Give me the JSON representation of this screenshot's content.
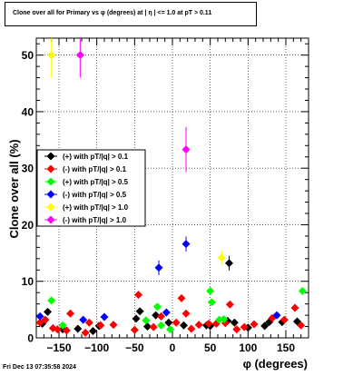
{
  "timestamp": "Fri Dec 13 07:35:58 2024",
  "chart_data": {
    "type": "scatter",
    "title": "Clone  over all for Primary vs φ (degrees) at | η | <= 1.0 at pT > 0.11",
    "xlabel": "φ (degrees)",
    "ylabel": "Clone  over all (%)",
    "xlim": [
      -180,
      180
    ],
    "ylim": [
      0,
      53
    ],
    "xticks": [
      -150,
      -100,
      -50,
      0,
      50,
      100,
      150
    ],
    "yticks": [
      0,
      10,
      20,
      30,
      40,
      50
    ],
    "grid": true,
    "legend_position": "middle-left",
    "series": [
      {
        "name": "(+) with pT/|q| > 0.1",
        "color": "#000000",
        "points": [
          [
            -172,
            2.5
          ],
          [
            -165,
            4.6
          ],
          [
            -145,
            1.5
          ],
          [
            -125,
            1.6
          ],
          [
            -105,
            1.2
          ],
          [
            -97,
            2.1
          ],
          [
            -48,
            3.4
          ],
          [
            -43,
            4.7
          ],
          [
            -33,
            2.0
          ],
          [
            -22,
            4.0
          ],
          [
            -5,
            2.7
          ],
          [
            15,
            2.2
          ],
          [
            45,
            2.2
          ],
          [
            50,
            2.1
          ],
          [
            73,
            3.0
          ],
          [
            75,
            13.2
          ],
          [
            82,
            2.7
          ],
          [
            100,
            1.8
          ],
          [
            122,
            2.1
          ],
          [
            128,
            2.8
          ],
          [
            145,
            2.8
          ],
          [
            165,
            2.9
          ]
        ]
      },
      {
        "name": "(-) with pT/|q| > 0.1",
        "color": "#ff0000",
        "points": [
          [
            -175,
            2.7
          ],
          [
            -168,
            3.2
          ],
          [
            -158,
            1.7
          ],
          [
            -152,
            1.5
          ],
          [
            -140,
            1.3
          ],
          [
            -135,
            4.3
          ],
          [
            -115,
            0.9
          ],
          [
            -110,
            2.7
          ],
          [
            -95,
            2.2
          ],
          [
            -78,
            2.3
          ],
          [
            -50,
            1.4
          ],
          [
            -45,
            7.6
          ],
          [
            -25,
            1.9
          ],
          [
            -15,
            3.8
          ],
          [
            5,
            2.7
          ],
          [
            12,
            7.0
          ],
          [
            18,
            4.3
          ],
          [
            25,
            1.6
          ],
          [
            35,
            2.3
          ],
          [
            48,
            2.5
          ],
          [
            58,
            2.5
          ],
          [
            70,
            2.6
          ],
          [
            76,
            5.9
          ],
          [
            85,
            1.5
          ],
          [
            95,
            1.9
          ],
          [
            108,
            2.4
          ],
          [
            132,
            3.5
          ],
          [
            148,
            3.2
          ],
          [
            162,
            5.3
          ],
          [
            170,
            2.2
          ]
        ]
      },
      {
        "name": "(+) with pT/|q| > 0.5",
        "color": "#00ff00",
        "points": [
          [
            -160,
            6.6
          ],
          [
            -145,
            2.2
          ],
          [
            -35,
            3.1
          ],
          [
            -20,
            5.5
          ],
          [
            -15,
            2.2
          ],
          [
            -3,
            1.5
          ],
          [
            50,
            8.3
          ],
          [
            52,
            6.3
          ],
          [
            62,
            3.2
          ],
          [
            68,
            3.3
          ],
          [
            172,
            8.3
          ]
        ]
      },
      {
        "name": "(-) with pT/|q| > 0.5",
        "color": "#0000ff",
        "points": [
          [
            -175,
            3.8
          ],
          [
            -118,
            3.2
          ],
          [
            -90,
            3.7
          ],
          [
            -18,
            12.4
          ],
          [
            -8,
            4.5
          ],
          [
            18,
            16.6
          ],
          [
            138,
            4.0
          ]
        ]
      },
      {
        "name": "(+) with pT/|q| > 1.0",
        "color": "#ffff00",
        "points": [
          [
            -160,
            50.0
          ],
          [
            65,
            14.2
          ]
        ]
      },
      {
        "name": "(-) with pT/|q| > 1.0",
        "color": "#ff00ff",
        "points": [
          [
            -122,
            50.0
          ],
          [
            18,
            33.3
          ]
        ]
      }
    ]
  }
}
